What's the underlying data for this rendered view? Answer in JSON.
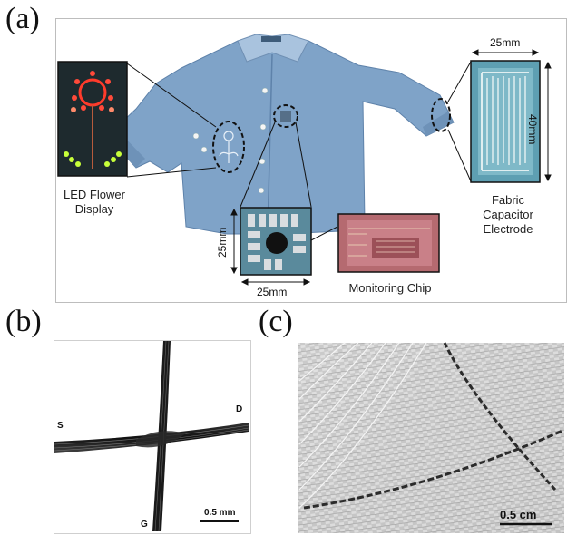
{
  "figure": {
    "panels": {
      "a": {
        "letter": "(a)",
        "labels": {
          "led_line1": "LED Flower",
          "led_line2": "Display",
          "cap_line1": "Fabric",
          "cap_line2": "Capacitor",
          "cap_line3": "Electrode",
          "chip": "Monitoring Chip"
        },
        "dimensions": {
          "cap_width": "25mm",
          "cap_height": "40mm",
          "patch_width": "25mm",
          "patch_height": "25mm"
        }
      },
      "b": {
        "letter": "(b)",
        "terminals": {
          "s": "S",
          "d": "D",
          "g": "G"
        },
        "scale_bar": "0.5 mm"
      },
      "c": {
        "letter": "(c)",
        "scale_bar": "0.5 cm"
      }
    },
    "colors": {
      "shirt": "#7fa3c8",
      "shirt_dark": "#5e82aa",
      "led_red": "#ff3b2b",
      "led_green": "#c8ff3a",
      "chip_bg": "#b56a70"
    }
  }
}
